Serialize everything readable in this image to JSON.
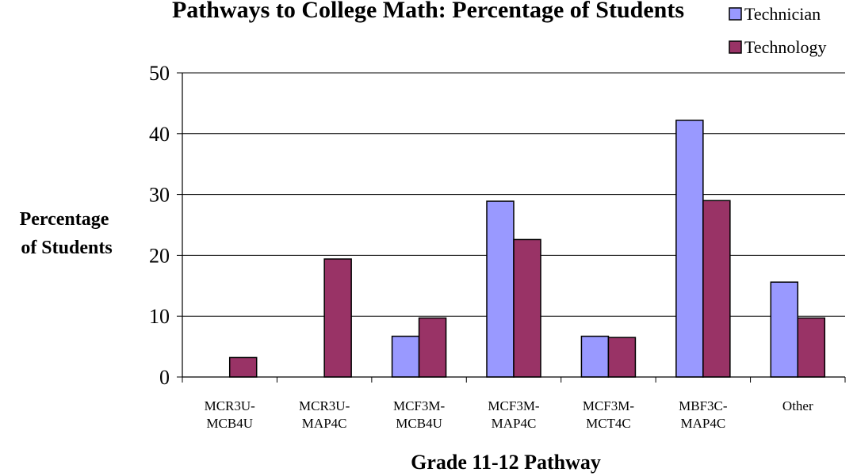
{
  "chart_data": {
    "type": "bar",
    "title": "Pathways to College Math: Percentage of Students",
    "xlabel": "Grade 11-12 Pathway",
    "ylabel": "Percentage of Students",
    "ylim": [
      0,
      50
    ],
    "yticks": [
      0,
      10,
      20,
      30,
      40,
      50
    ],
    "grid": true,
    "legend_position": "top-right",
    "categories": [
      [
        "MCR3U-",
        "MCB4U"
      ],
      [
        "MCR3U-",
        "MAP4C"
      ],
      [
        "MCF3M-",
        "MCB4U"
      ],
      [
        "MCF3M-",
        "MAP4C"
      ],
      [
        "MCF3M-",
        "MCT4C"
      ],
      [
        "MBF3C-",
        "MAP4C"
      ],
      [
        "Other"
      ]
    ],
    "series": [
      {
        "name": "Technician",
        "color": "#9999ff",
        "values": [
          0,
          0,
          6.7,
          28.9,
          6.7,
          42.2,
          15.6
        ]
      },
      {
        "name": "Technology",
        "color": "#993366",
        "values": [
          3.2,
          19.4,
          9.7,
          22.6,
          6.5,
          29.0,
          9.7
        ]
      }
    ]
  }
}
